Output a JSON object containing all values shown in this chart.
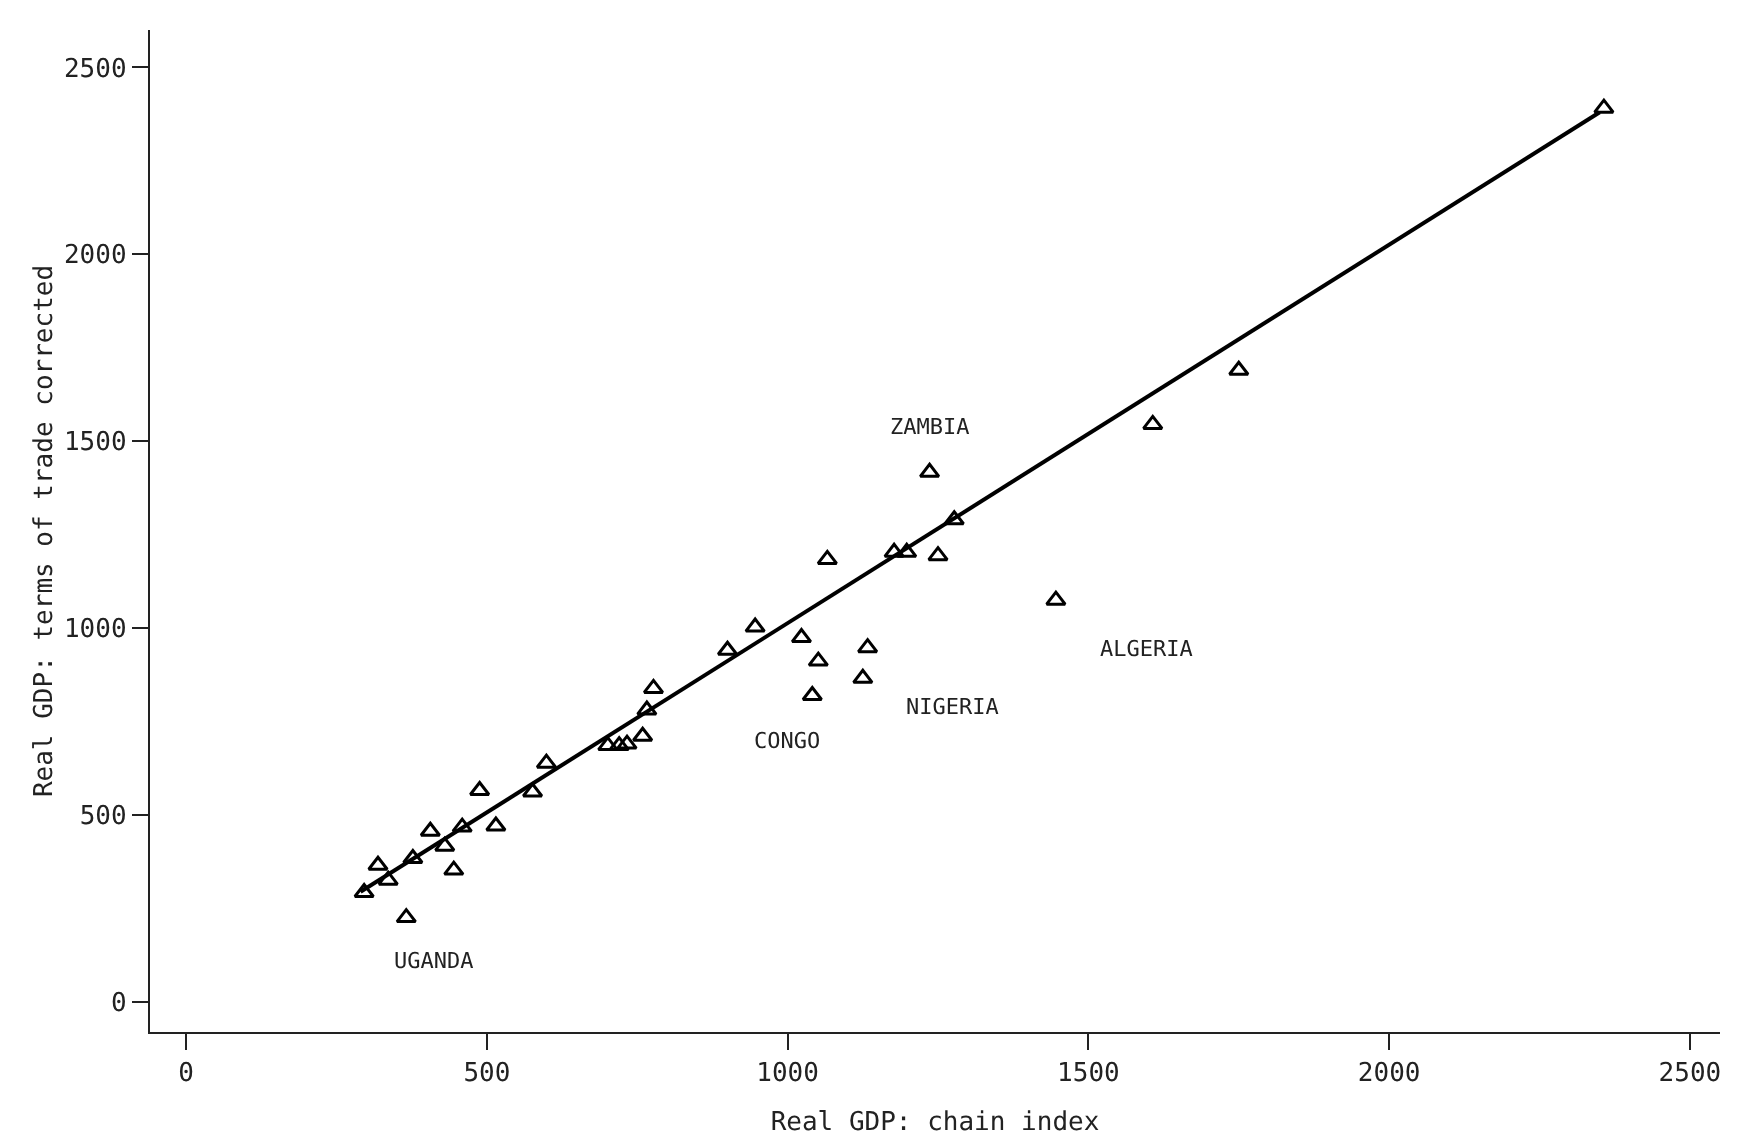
{
  "chart_data": {
    "type": "scatter",
    "xlabel": "Real GDP: chain index",
    "ylabel": "Real GDP: terms of trade corrected",
    "xlim": [
      -60,
      2550
    ],
    "ylim": [
      -80,
      2600
    ],
    "xticks": [
      0,
      500,
      1000,
      1500,
      2000,
      2500
    ],
    "yticks": [
      0,
      500,
      1000,
      1500,
      2000,
      2500
    ],
    "grid": false,
    "marker": "triangle",
    "series": [
      {
        "color": "#000000",
        "x": [
          296,
          319,
          336,
          366,
          377,
          406,
          430,
          445,
          459,
          488,
          515,
          576,
          599,
          701,
          720,
          733,
          759,
          766,
          777,
          900,
          946,
          1023,
          1051,
          1041,
          1066,
          1133,
          1125,
          1177,
          1198,
          1236,
          1250,
          1277,
          1446,
          1607,
          1750,
          2357
        ],
        "values": [
          293,
          366,
          326,
          226,
          384,
          457,
          417,
          353,
          468,
          566,
          471,
          562,
          639,
          686,
          686,
          690,
          711,
          781,
          839,
          941,
          1003,
          975,
          912,
          820,
          1184,
          948,
          866,
          1203,
          1203,
          1417,
          1194,
          1290,
          1075,
          1545,
          1690,
          2391
        ]
      },
      {
        "type": "line",
        "color": "#000000",
        "marker": "none",
        "line_style": "solid",
        "x": [
          290,
          2350
        ],
        "values": [
          295,
          2380
        ]
      }
    ],
    "annotations": [
      {
        "text": "ZAMBIA",
        "x": 1236,
        "y": 1417
      },
      {
        "text": "ALGERIA",
        "x": 1446,
        "y": 1075
      },
      {
        "text": "NIGERIA",
        "x": 1125,
        "y": 866
      },
      {
        "text": "CONGO",
        "x": 1041,
        "y": 820
      },
      {
        "text": "UGANDA",
        "x": 366,
        "y": 226
      }
    ]
  }
}
